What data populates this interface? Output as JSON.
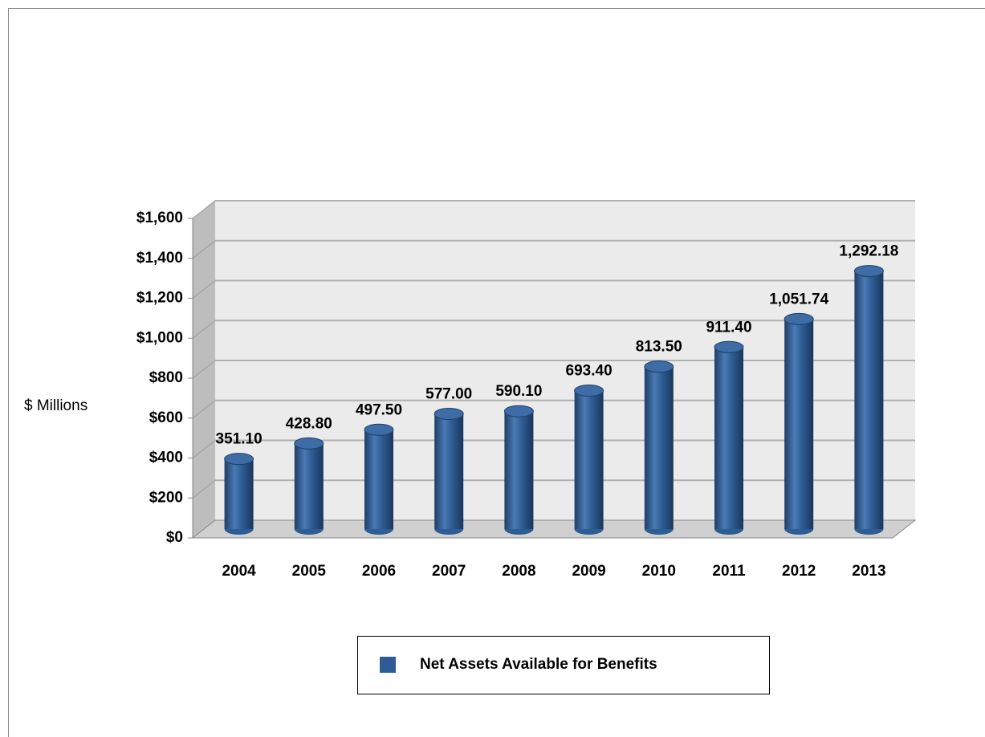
{
  "chart_data": {
    "type": "bar",
    "y_label": "$ Millions",
    "categories": [
      "2004",
      "2005",
      "2006",
      "2007",
      "2008",
      "2009",
      "2010",
      "2011",
      "2012",
      "2013"
    ],
    "series": [
      {
        "name": "Net Assets Available for Benefits",
        "color": "#2e5d95",
        "values": [
          351.1,
          428.8,
          497.5,
          577.0,
          590.1,
          693.4,
          813.5,
          911.4,
          1051.74,
          1292.18
        ],
        "value_labels": [
          "351.10",
          "428.80",
          "497.50",
          "577.00",
          "590.10",
          "693.40",
          "813.50",
          "911.40",
          "1,051.74",
          "1,292.18"
        ]
      }
    ],
    "ylim": [
      0,
      1600
    ],
    "yticks": [
      {
        "value": 0,
        "label": "$0"
      },
      {
        "value": 200,
        "label": "$200"
      },
      {
        "value": 400,
        "label": "$400"
      },
      {
        "value": 600,
        "label": "$600"
      },
      {
        "value": 800,
        "label": "$800"
      },
      {
        "value": 1000,
        "label": "$1,000"
      },
      {
        "value": 1200,
        "label": "$1,200"
      },
      {
        "value": 1400,
        "label": "$1,400"
      },
      {
        "value": 1600,
        "label": "$1,600"
      }
    ],
    "grid": true,
    "legend": "bottom"
  }
}
